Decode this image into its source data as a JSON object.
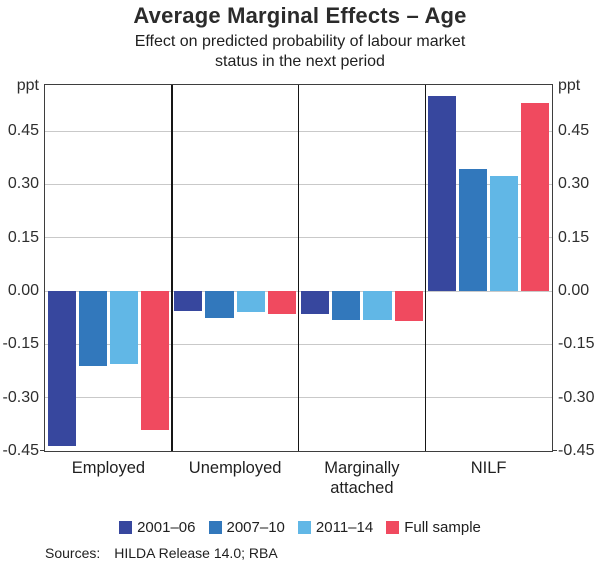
{
  "header": {
    "title": "Average Marginal Effects – Age",
    "subtitle_lines": [
      "Effect on predicted probability of labour market",
      "status in the next period"
    ]
  },
  "chart_data": {
    "type": "bar",
    "title": "Average Marginal Effects – Age",
    "subtitle": "Effect on predicted probability of labour market status in the next period",
    "unit_label": "ppt",
    "categories": [
      "Employed",
      "Unemployed",
      "Marginally attached",
      "NILF"
    ],
    "series": [
      {
        "name": "2001–06",
        "color": "#37479e",
        "values": [
          -0.435,
          -0.055,
          -0.065,
          0.55
        ]
      },
      {
        "name": "2007–10",
        "color": "#3278bc",
        "values": [
          -0.21,
          -0.075,
          -0.08,
          0.345
        ]
      },
      {
        "name": "2011–14",
        "color": "#61b7e6",
        "values": [
          -0.205,
          -0.06,
          -0.08,
          0.325
        ]
      },
      {
        "name": "Full sample",
        "color": "#f04a5f",
        "values": [
          -0.39,
          -0.065,
          -0.085,
          0.53
        ]
      }
    ],
    "yticks": [
      0.45,
      0.3,
      0.15,
      0.0,
      -0.15,
      -0.3,
      -0.45
    ],
    "ylim": [
      -0.45,
      0.58
    ],
    "grid": true,
    "legend_position": "bottom",
    "colors": {
      "gridline": "#c9c9c9",
      "frame": "#3e3e3e",
      "panel_divider": "#161616"
    }
  },
  "footer": {
    "sources_label": "Sources:",
    "sources_text": "HILDA Release 14.0; RBA"
  }
}
